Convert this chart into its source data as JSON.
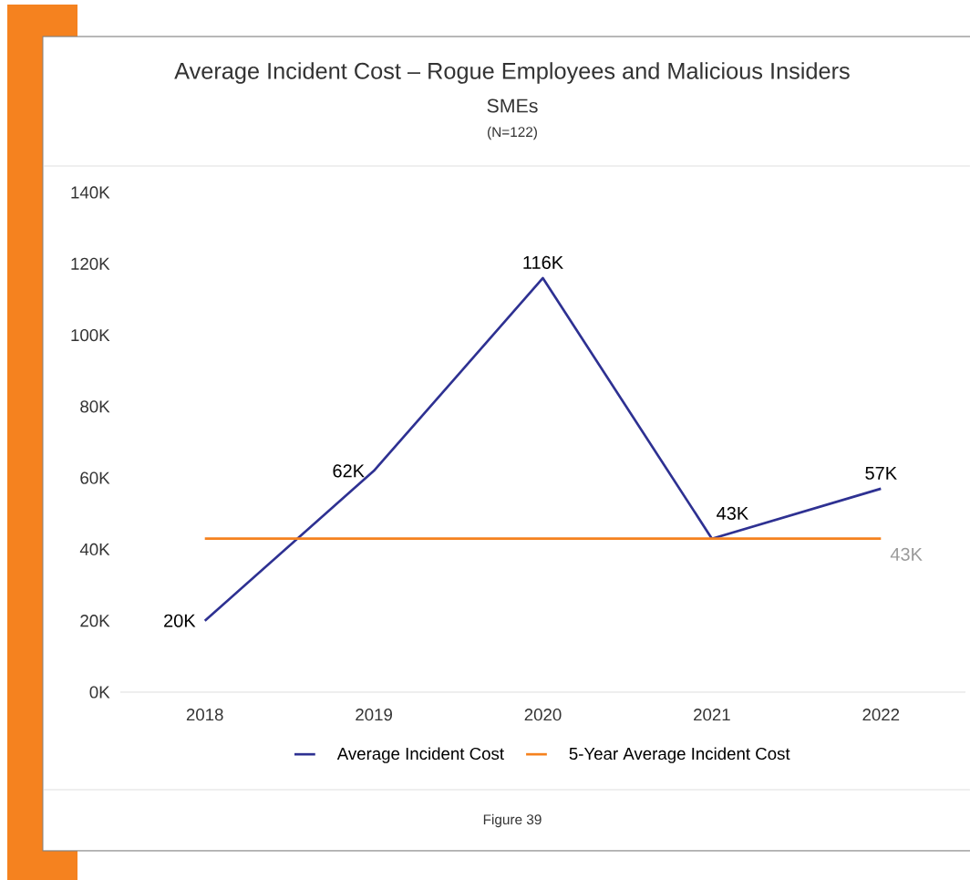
{
  "chart_data": {
    "type": "line",
    "title": "Average Incident Cost – Rogue Employees and Malicious Insiders",
    "subtitle": "SMEs",
    "annotations": [
      "(N=122)",
      "Figure 39"
    ],
    "categories": [
      "2018",
      "2019",
      "2020",
      "2021",
      "2022"
    ],
    "series": [
      {
        "name": "Average Incident Cost",
        "color": "#2e3192",
        "values": [
          20,
          62,
          116,
          43,
          57
        ],
        "value_labels": [
          "20K",
          "62K",
          "116K",
          "43K",
          "57K"
        ]
      },
      {
        "name": "5-Year Average Incident Cost",
        "color": "#f5821f",
        "values": [
          43,
          43,
          43,
          43,
          43
        ],
        "value_labels": [
          null,
          null,
          null,
          null,
          "43K"
        ]
      }
    ],
    "ylim": [
      0,
      140
    ],
    "yticks": [
      {
        "value": 0,
        "label": "0K"
      },
      {
        "value": 20,
        "label": "20K"
      },
      {
        "value": 40,
        "label": "40K"
      },
      {
        "value": 60,
        "label": "60K"
      },
      {
        "value": 80,
        "label": "80K"
      },
      {
        "value": 100,
        "label": "100K"
      },
      {
        "value": 120,
        "label": "120K"
      },
      {
        "value": 140,
        "label": "140K"
      }
    ],
    "grid": false,
    "legend": "bottom",
    "marker": "none",
    "line_style": "solid"
  }
}
